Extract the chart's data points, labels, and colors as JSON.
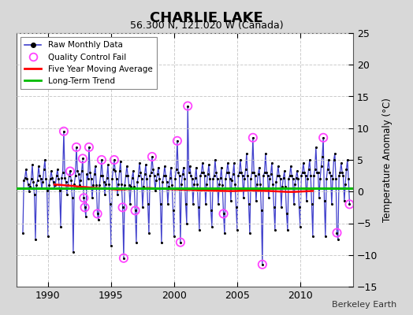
{
  "title": "CHARLIE LAKE",
  "subtitle": "56.300 N, 121.020 W (Canada)",
  "ylabel": "Temperature Anomaly (°C)",
  "attribution": "Berkeley Earth",
  "xlim": [
    1987.5,
    2014.2
  ],
  "ylim": [
    -15,
    25
  ],
  "yticks": [
    -15,
    -10,
    -5,
    0,
    5,
    10,
    15,
    20,
    25
  ],
  "xticks": [
    1990,
    1995,
    2000,
    2005,
    2010
  ],
  "fig_bg": "#d8d8d8",
  "plot_bg": "#ffffff",
  "raw_color": "#4040cc",
  "dot_color": "#000000",
  "qc_color": "#ff44ff",
  "moving_avg_color": "#ff0000",
  "trend_color": "#00bb00",
  "trend_y": 0.5,
  "raw_data": [
    [
      1988.0,
      -6.5
    ],
    [
      1988.083,
      1.8
    ],
    [
      1988.167,
      2.2
    ],
    [
      1988.25,
      3.5
    ],
    [
      1988.333,
      2.0
    ],
    [
      1988.417,
      1.2
    ],
    [
      1988.5,
      0.0
    ],
    [
      1988.583,
      0.8
    ],
    [
      1988.667,
      2.0
    ],
    [
      1988.75,
      4.2
    ],
    [
      1988.833,
      1.5
    ],
    [
      1988.917,
      -0.5
    ],
    [
      1989.0,
      -7.5
    ],
    [
      1989.083,
      1.0
    ],
    [
      1989.167,
      1.8
    ],
    [
      1989.25,
      4.0
    ],
    [
      1989.333,
      2.5
    ],
    [
      1989.417,
      2.0
    ],
    [
      1989.5,
      0.5
    ],
    [
      1989.583,
      1.5
    ],
    [
      1989.667,
      3.5
    ],
    [
      1989.75,
      5.0
    ],
    [
      1989.833,
      2.0
    ],
    [
      1989.917,
      0.2
    ],
    [
      1990.0,
      -7.0
    ],
    [
      1990.083,
      1.0
    ],
    [
      1990.167,
      2.0
    ],
    [
      1990.25,
      3.2
    ],
    [
      1990.333,
      2.2
    ],
    [
      1990.417,
      1.5
    ],
    [
      1990.5,
      0.5
    ],
    [
      1990.583,
      1.0
    ],
    [
      1990.667,
      2.5
    ],
    [
      1990.75,
      3.5
    ],
    [
      1990.833,
      2.0
    ],
    [
      1990.917,
      0.2
    ],
    [
      1991.0,
      -5.5
    ],
    [
      1991.083,
      2.2
    ],
    [
      1991.167,
      3.0
    ],
    [
      1991.25,
      9.5
    ],
    [
      1991.333,
      2.2
    ],
    [
      1991.417,
      1.5
    ],
    [
      1991.5,
      -0.5
    ],
    [
      1991.583,
      1.0
    ],
    [
      1991.667,
      2.5
    ],
    [
      1991.75,
      3.2
    ],
    [
      1991.833,
      1.8
    ],
    [
      1991.917,
      -1.0
    ],
    [
      1992.0,
      -9.5
    ],
    [
      1992.083,
      1.2
    ],
    [
      1992.167,
      2.5
    ],
    [
      1992.25,
      7.0
    ],
    [
      1992.333,
      3.2
    ],
    [
      1992.417,
      2.8
    ],
    [
      1992.5,
      1.0
    ],
    [
      1992.583,
      1.8
    ],
    [
      1992.667,
      3.2
    ],
    [
      1992.75,
      5.2
    ],
    [
      1992.833,
      -1.0
    ],
    [
      1992.917,
      -2.5
    ],
    [
      1993.0,
      -4.0
    ],
    [
      1993.083,
      2.8
    ],
    [
      1993.167,
      2.0
    ],
    [
      1993.25,
      7.0
    ],
    [
      1993.333,
      3.0
    ],
    [
      1993.417,
      2.0
    ],
    [
      1993.5,
      -1.0
    ],
    [
      1993.583,
      1.0
    ],
    [
      1993.667,
      2.8
    ],
    [
      1993.75,
      4.0
    ],
    [
      1993.833,
      1.0
    ],
    [
      1993.917,
      -3.5
    ],
    [
      1994.0,
      -4.5
    ],
    [
      1994.083,
      1.0
    ],
    [
      1994.167,
      2.5
    ],
    [
      1994.25,
      5.0
    ],
    [
      1994.333,
      2.5
    ],
    [
      1994.417,
      1.5
    ],
    [
      1994.5,
      -0.5
    ],
    [
      1994.583,
      1.2
    ],
    [
      1994.667,
      2.2
    ],
    [
      1994.75,
      4.2
    ],
    [
      1994.833,
      1.2
    ],
    [
      1994.917,
      -2.0
    ],
    [
      1995.0,
      -8.5
    ],
    [
      1995.083,
      2.0
    ],
    [
      1995.167,
      3.5
    ],
    [
      1995.25,
      5.0
    ],
    [
      1995.333,
      3.2
    ],
    [
      1995.417,
      2.0
    ],
    [
      1995.5,
      -0.5
    ],
    [
      1995.583,
      1.2
    ],
    [
      1995.667,
      3.2
    ],
    [
      1995.75,
      4.8
    ],
    [
      1995.833,
      1.2
    ],
    [
      1995.917,
      -2.5
    ],
    [
      1996.0,
      -10.5
    ],
    [
      1996.083,
      1.0
    ],
    [
      1996.167,
      2.5
    ],
    [
      1996.25,
      4.0
    ],
    [
      1996.333,
      2.5
    ],
    [
      1996.417,
      1.0
    ],
    [
      1996.5,
      -2.0
    ],
    [
      1996.583,
      0.8
    ],
    [
      1996.667,
      2.2
    ],
    [
      1996.75,
      3.2
    ],
    [
      1996.833,
      0.8
    ],
    [
      1996.917,
      -3.0
    ],
    [
      1997.0,
      -8.0
    ],
    [
      1997.083,
      1.5
    ],
    [
      1997.167,
      2.5
    ],
    [
      1997.25,
      4.5
    ],
    [
      1997.333,
      3.0
    ],
    [
      1997.417,
      2.0
    ],
    [
      1997.5,
      -2.5
    ],
    [
      1997.583,
      0.8
    ],
    [
      1997.667,
      2.8
    ],
    [
      1997.75,
      4.2
    ],
    [
      1997.833,
      2.0
    ],
    [
      1997.917,
      -2.0
    ],
    [
      1998.0,
      -6.5
    ],
    [
      1998.083,
      2.5
    ],
    [
      1998.167,
      3.0
    ],
    [
      1998.25,
      5.5
    ],
    [
      1998.333,
      3.5
    ],
    [
      1998.417,
      2.5
    ],
    [
      1998.5,
      0.2
    ],
    [
      1998.583,
      1.8
    ],
    [
      1998.667,
      2.8
    ],
    [
      1998.75,
      3.8
    ],
    [
      1998.833,
      2.0
    ],
    [
      1998.917,
      -2.0
    ],
    [
      1999.0,
      -8.0
    ],
    [
      1999.083,
      1.5
    ],
    [
      1999.167,
      2.5
    ],
    [
      1999.25,
      4.0
    ],
    [
      1999.333,
      2.5
    ],
    [
      1999.417,
      1.5
    ],
    [
      1999.5,
      -2.0
    ],
    [
      1999.583,
      0.8
    ],
    [
      1999.667,
      2.2
    ],
    [
      1999.75,
      3.8
    ],
    [
      1999.833,
      1.0
    ],
    [
      1999.917,
      -3.0
    ],
    [
      2000.0,
      -7.0
    ],
    [
      2000.083,
      2.0
    ],
    [
      2000.167,
      3.5
    ],
    [
      2000.25,
      8.0
    ],
    [
      2000.333,
      3.0
    ],
    [
      2000.417,
      2.5
    ],
    [
      2000.5,
      -8.0
    ],
    [
      2000.583,
      1.2
    ],
    [
      2000.667,
      2.8
    ],
    [
      2000.75,
      3.8
    ],
    [
      2000.833,
      2.0
    ],
    [
      2000.917,
      -2.0
    ],
    [
      2001.0,
      -5.0
    ],
    [
      2001.083,
      13.5
    ],
    [
      2001.167,
      3.0
    ],
    [
      2001.25,
      4.0
    ],
    [
      2001.333,
      2.5
    ],
    [
      2001.417,
      2.0
    ],
    [
      2001.5,
      -2.0
    ],
    [
      2001.583,
      1.2
    ],
    [
      2001.667,
      2.2
    ],
    [
      2001.75,
      3.8
    ],
    [
      2001.833,
      1.2
    ],
    [
      2001.917,
      -2.5
    ],
    [
      2002.0,
      -6.0
    ],
    [
      2002.083,
      2.5
    ],
    [
      2002.167,
      3.0
    ],
    [
      2002.25,
      4.5
    ],
    [
      2002.333,
      3.0
    ],
    [
      2002.417,
      2.5
    ],
    [
      2002.5,
      -2.0
    ],
    [
      2002.583,
      1.2
    ],
    [
      2002.667,
      2.8
    ],
    [
      2002.75,
      4.2
    ],
    [
      2002.833,
      2.0
    ],
    [
      2002.917,
      -3.0
    ],
    [
      2003.0,
      -5.5
    ],
    [
      2003.083,
      2.0
    ],
    [
      2003.167,
      2.5
    ],
    [
      2003.25,
      5.0
    ],
    [
      2003.333,
      3.0
    ],
    [
      2003.417,
      2.0
    ],
    [
      2003.5,
      -2.0
    ],
    [
      2003.583,
      1.2
    ],
    [
      2003.667,
      2.2
    ],
    [
      2003.75,
      3.8
    ],
    [
      2003.833,
      1.0
    ],
    [
      2003.917,
      -3.5
    ],
    [
      2004.0,
      -6.5
    ],
    [
      2004.083,
      2.0
    ],
    [
      2004.167,
      3.0
    ],
    [
      2004.25,
      4.5
    ],
    [
      2004.333,
      3.0
    ],
    [
      2004.417,
      2.0
    ],
    [
      2004.5,
      -1.5
    ],
    [
      2004.583,
      1.8
    ],
    [
      2004.667,
      2.8
    ],
    [
      2004.75,
      4.5
    ],
    [
      2004.833,
      1.2
    ],
    [
      2004.917,
      -2.5
    ],
    [
      2005.0,
      -6.0
    ],
    [
      2005.083,
      2.5
    ],
    [
      2005.167,
      3.0
    ],
    [
      2005.25,
      5.0
    ],
    [
      2005.333,
      3.0
    ],
    [
      2005.417,
      2.5
    ],
    [
      2005.5,
      -1.0
    ],
    [
      2005.583,
      2.0
    ],
    [
      2005.667,
      3.5
    ],
    [
      2005.75,
      6.0
    ],
    [
      2005.833,
      2.5
    ],
    [
      2005.917,
      -2.0
    ],
    [
      2006.0,
      -6.5
    ],
    [
      2006.083,
      2.0
    ],
    [
      2006.167,
      3.0
    ],
    [
      2006.25,
      8.5
    ],
    [
      2006.333,
      3.0
    ],
    [
      2006.417,
      2.5
    ],
    [
      2006.5,
      -1.5
    ],
    [
      2006.583,
      1.2
    ],
    [
      2006.667,
      2.8
    ],
    [
      2006.75,
      3.8
    ],
    [
      2006.833,
      1.2
    ],
    [
      2006.917,
      -3.0
    ],
    [
      2007.0,
      -11.5
    ],
    [
      2007.083,
      2.5
    ],
    [
      2007.167,
      3.0
    ],
    [
      2007.25,
      6.0
    ],
    [
      2007.333,
      3.0
    ],
    [
      2007.417,
      2.5
    ],
    [
      2007.5,
      -1.0
    ],
    [
      2007.583,
      2.0
    ],
    [
      2007.667,
      2.8
    ],
    [
      2007.75,
      4.5
    ],
    [
      2007.833,
      1.2
    ],
    [
      2007.917,
      -2.5
    ],
    [
      2008.0,
      -6.0
    ],
    [
      2008.083,
      1.5
    ],
    [
      2008.167,
      2.5
    ],
    [
      2008.25,
      4.0
    ],
    [
      2008.333,
      2.5
    ],
    [
      2008.417,
      2.0
    ],
    [
      2008.5,
      -2.5
    ],
    [
      2008.583,
      0.8
    ],
    [
      2008.667,
      2.2
    ],
    [
      2008.75,
      3.2
    ],
    [
      2008.833,
      0.8
    ],
    [
      2008.917,
      -3.5
    ],
    [
      2009.0,
      -6.0
    ],
    [
      2009.083,
      2.0
    ],
    [
      2009.167,
      2.5
    ],
    [
      2009.25,
      4.0
    ],
    [
      2009.333,
      2.5
    ],
    [
      2009.417,
      2.0
    ],
    [
      2009.5,
      -2.0
    ],
    [
      2009.583,
      1.2
    ],
    [
      2009.667,
      2.2
    ],
    [
      2009.75,
      3.2
    ],
    [
      2009.833,
      2.0
    ],
    [
      2009.917,
      -2.5
    ],
    [
      2010.0,
      -5.5
    ],
    [
      2010.083,
      2.5
    ],
    [
      2010.167,
      3.0
    ],
    [
      2010.25,
      4.5
    ],
    [
      2010.333,
      3.0
    ],
    [
      2010.417,
      2.5
    ],
    [
      2010.5,
      -1.5
    ],
    [
      2010.583,
      2.0
    ],
    [
      2010.667,
      3.5
    ],
    [
      2010.75,
      5.0
    ],
    [
      2010.833,
      2.5
    ],
    [
      2010.917,
      -2.0
    ],
    [
      2011.0,
      -7.0
    ],
    [
      2011.083,
      2.5
    ],
    [
      2011.167,
      3.5
    ],
    [
      2011.25,
      7.0
    ],
    [
      2011.333,
      3.0
    ],
    [
      2011.417,
      3.0
    ],
    [
      2011.5,
      -1.0
    ],
    [
      2011.583,
      2.0
    ],
    [
      2011.667,
      4.0
    ],
    [
      2011.75,
      5.5
    ],
    [
      2011.833,
      8.5
    ],
    [
      2011.917,
      -1.5
    ],
    [
      2012.0,
      -7.0
    ],
    [
      2012.083,
      2.0
    ],
    [
      2012.167,
      3.5
    ],
    [
      2012.25,
      5.0
    ],
    [
      2012.333,
      3.0
    ],
    [
      2012.417,
      2.5
    ],
    [
      2012.5,
      -2.0
    ],
    [
      2012.583,
      2.0
    ],
    [
      2012.667,
      5.0
    ],
    [
      2012.75,
      6.0
    ],
    [
      2012.833,
      2.0
    ],
    [
      2012.917,
      -6.5
    ],
    [
      2013.0,
      -7.5
    ],
    [
      2013.083,
      2.5
    ],
    [
      2013.167,
      3.0
    ],
    [
      2013.25,
      4.5
    ],
    [
      2013.333,
      3.0
    ],
    [
      2013.417,
      2.5
    ],
    [
      2013.5,
      -1.5
    ],
    [
      2013.583,
      1.2
    ],
    [
      2013.667,
      3.5
    ],
    [
      2013.75,
      5.0
    ],
    [
      2013.833,
      2.0
    ],
    [
      2013.917,
      -2.0
    ]
  ],
  "qc_fail_points": [
    [
      1991.25,
      9.5
    ],
    [
      1991.75,
      3.2
    ],
    [
      1992.25,
      7.0
    ],
    [
      1992.75,
      5.2
    ],
    [
      1992.833,
      -1.0
    ],
    [
      1992.917,
      -2.5
    ],
    [
      1993.25,
      7.0
    ],
    [
      1993.917,
      -3.5
    ],
    [
      1994.25,
      5.0
    ],
    [
      1995.25,
      5.0
    ],
    [
      1995.917,
      -2.5
    ],
    [
      1996.0,
      -10.5
    ],
    [
      1996.917,
      -3.0
    ],
    [
      1998.25,
      5.5
    ],
    [
      2000.25,
      8.0
    ],
    [
      2000.5,
      -8.0
    ],
    [
      2001.083,
      13.5
    ],
    [
      2003.917,
      -3.5
    ],
    [
      2006.25,
      8.5
    ],
    [
      2007.0,
      -11.5
    ],
    [
      2011.833,
      8.5
    ],
    [
      2012.917,
      -6.5
    ],
    [
      2013.917,
      -2.0
    ]
  ],
  "moving_avg_pts": [
    [
      1990.5,
      1.1
    ],
    [
      1991.0,
      1.05
    ],
    [
      1991.5,
      0.95
    ],
    [
      1992.0,
      0.9
    ],
    [
      1992.5,
      0.75
    ],
    [
      1993.0,
      0.7
    ],
    [
      1993.5,
      0.6
    ],
    [
      1994.0,
      0.55
    ],
    [
      1994.5,
      0.45
    ],
    [
      1995.0,
      0.4
    ],
    [
      1995.5,
      0.3
    ],
    [
      1996.0,
      0.35
    ],
    [
      1996.5,
      0.4
    ],
    [
      1997.0,
      0.45
    ],
    [
      1997.5,
      0.5
    ],
    [
      1998.0,
      0.55
    ],
    [
      1998.5,
      0.5
    ],
    [
      1999.0,
      0.45
    ],
    [
      1999.5,
      0.4
    ],
    [
      2000.0,
      0.35
    ],
    [
      2000.5,
      0.3
    ],
    [
      2001.0,
      0.28
    ],
    [
      2001.5,
      0.25
    ],
    [
      2002.0,
      0.2
    ],
    [
      2002.5,
      0.18
    ],
    [
      2003.0,
      0.15
    ],
    [
      2003.5,
      0.12
    ],
    [
      2004.0,
      0.1
    ],
    [
      2004.5,
      0.08
    ],
    [
      2005.0,
      0.1
    ],
    [
      2005.5,
      0.15
    ],
    [
      2006.0,
      0.18
    ],
    [
      2006.5,
      0.15
    ],
    [
      2007.0,
      0.12
    ],
    [
      2007.5,
      0.1
    ],
    [
      2008.0,
      0.05
    ],
    [
      2008.5,
      0.0
    ],
    [
      2009.0,
      -0.05
    ],
    [
      2009.5,
      -0.05
    ],
    [
      2010.0,
      0.0
    ],
    [
      2010.5,
      0.05
    ],
    [
      2011.0,
      0.1
    ]
  ]
}
